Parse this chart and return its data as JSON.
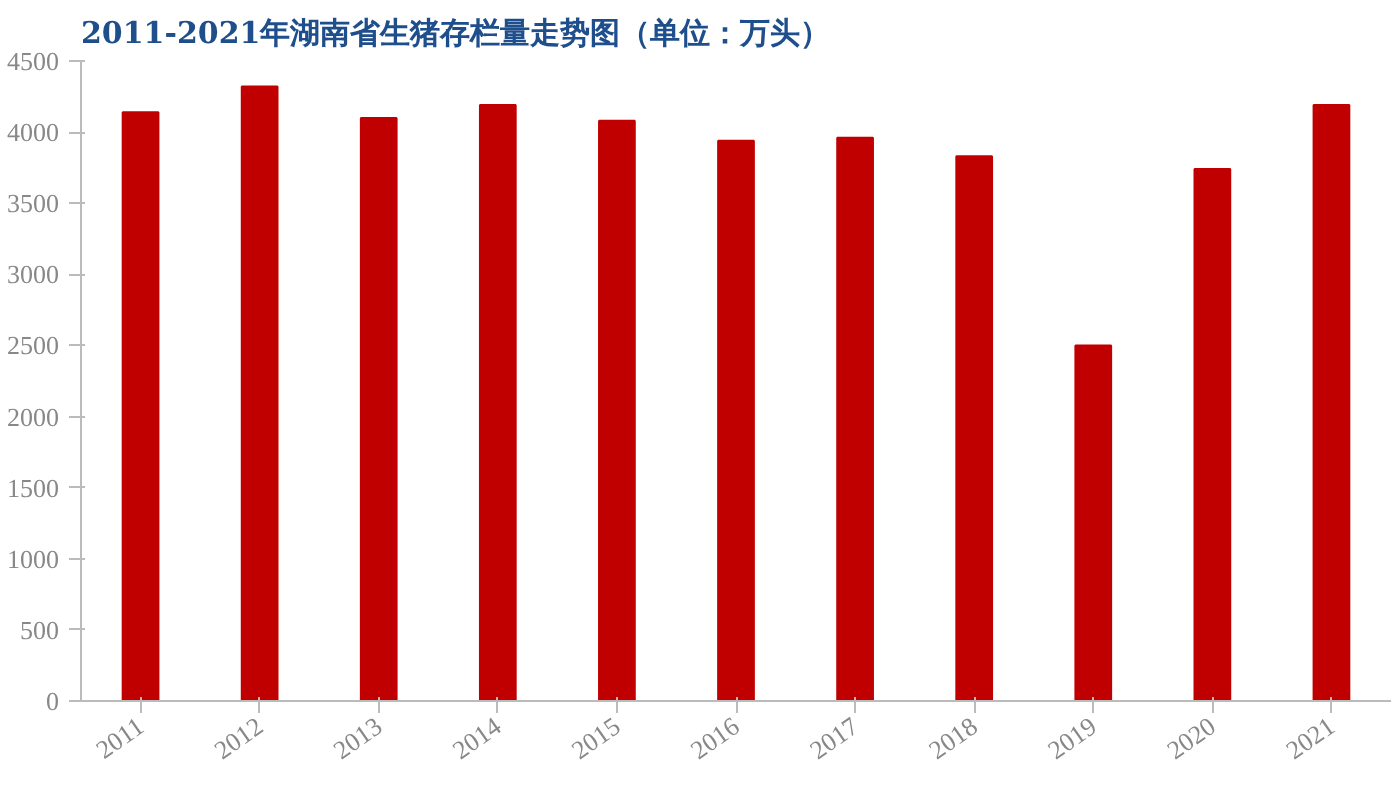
{
  "chart_data": {
    "type": "bar",
    "title": "2011-2021年湖南省生猪存栏量走势图（单位：万头）",
    "categories": [
      "2011",
      "2012",
      "2013",
      "2014",
      "2015",
      "2016",
      "2017",
      "2018",
      "2019",
      "2020",
      "2021"
    ],
    "values": [
      4140,
      4320,
      4100,
      4190,
      4080,
      3940,
      3960,
      3830,
      2500,
      3740,
      4190
    ],
    "color": "#c00000",
    "ylim": [
      0,
      4500
    ],
    "yticks": [
      0,
      500,
      1000,
      1500,
      2000,
      2500,
      3000,
      3500,
      4000,
      4500
    ],
    "grid": false
  }
}
